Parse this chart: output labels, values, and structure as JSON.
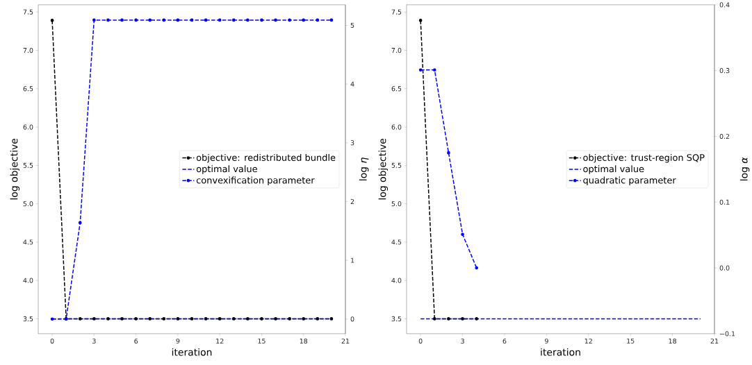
{
  "chart_data": [
    {
      "type": "line",
      "xlabel": "iteration",
      "ylabel": "log objective",
      "y2label": "log *η*",
      "xlim": [
        -1,
        21
      ],
      "ylim": [
        3.306,
        7.594
      ],
      "y2lim": [
        -0.25,
        5.35
      ],
      "xticks": [
        0,
        3,
        6,
        9,
        12,
        15,
        18,
        21
      ],
      "yticks": [
        3.5,
        {
          "value": 4,
          "label": "4.0"
        },
        4.5,
        {
          "value": 5,
          "label": "5.0"
        },
        5.5,
        {
          "value": 6,
          "label": "6.0"
        },
        6.5,
        {
          "value": 7,
          "label": "7.0"
        },
        7.5
      ],
      "y2ticks": [
        0,
        1,
        2,
        3,
        4,
        5
      ],
      "legend": "right",
      "line_style": "dashed",
      "series": [
        {
          "name": "objective: redistributed bundle",
          "color": "#000000",
          "marker": "circle",
          "x": [
            0,
            1,
            2,
            3,
            4,
            5,
            6,
            7,
            8,
            9,
            10,
            11,
            12,
            13,
            14,
            15,
            16,
            17,
            18,
            19,
            20
          ],
          "values": [
            7.39,
            3.5,
            3.5,
            3.5,
            3.5,
            3.5,
            3.5,
            3.5,
            3.5,
            3.5,
            3.5,
            3.5,
            3.5,
            3.5,
            3.5,
            3.5,
            3.5,
            3.5,
            3.5,
            3.5,
            3.5
          ]
        },
        {
          "name": "optimal value",
          "color": "#0000ff",
          "marker": "none",
          "x": [
            0,
            20
          ],
          "values": [
            3.5,
            3.5
          ]
        },
        {
          "name": "convexification parameter",
          "color": "#0000ff",
          "marker": "circle",
          "axis": "y2",
          "x": [
            0,
            1,
            2,
            3,
            4,
            5,
            6,
            7,
            8,
            9,
            10,
            11,
            12,
            13,
            14,
            15,
            16,
            17,
            18,
            19,
            20
          ],
          "values": [
            0,
            0,
            1.64,
            5.09,
            5.09,
            5.09,
            5.09,
            5.09,
            5.09,
            5.09,
            5.09,
            5.09,
            5.09,
            5.09,
            5.09,
            5.09,
            5.09,
            5.09,
            5.09,
            5.09,
            5.09
          ]
        }
      ]
    },
    {
      "type": "line",
      "xlabel": "iteration",
      "ylabel": "log objective",
      "y2label": "log *α*",
      "xlim": [
        -1,
        21
      ],
      "ylim": [
        3.306,
        7.594
      ],
      "y2lim": [
        -0.1,
        0.4
      ],
      "xticks": [
        0,
        3,
        6,
        9,
        12,
        15,
        18,
        21
      ],
      "yticks": [
        3.5,
        {
          "value": 4,
          "label": "4.0"
        },
        4.5,
        {
          "value": 5,
          "label": "5.0"
        },
        5.5,
        {
          "value": 6,
          "label": "6.0"
        },
        6.5,
        {
          "value": 7,
          "label": "7.0"
        },
        7.5
      ],
      "y2ticks": [
        {
          "value": -0.1,
          "label": "−0.1"
        },
        {
          "value": 0,
          "label": "0.0"
        },
        0.1,
        0.2,
        0.3,
        0.4
      ],
      "legend": "right",
      "line_style": "dashed",
      "series": [
        {
          "name": "objective: trust-region SQP",
          "color": "#000000",
          "marker": "circle",
          "x": [
            0,
            1,
            2,
            3,
            4
          ],
          "values": [
            7.39,
            3.5,
            3.5,
            3.5,
            3.5
          ]
        },
        {
          "name": "optimal value",
          "color": "#0000ff",
          "marker": "none",
          "x": [
            0,
            20
          ],
          "values": [
            3.5,
            3.5
          ]
        },
        {
          "name": "quadratic parameter",
          "color": "#0000ff",
          "marker": "circle",
          "axis": "y2",
          "x": [
            0,
            1,
            2,
            3,
            4
          ],
          "values": [
            0.301,
            0.301,
            0.175,
            0.051,
            0.0
          ]
        }
      ]
    }
  ]
}
